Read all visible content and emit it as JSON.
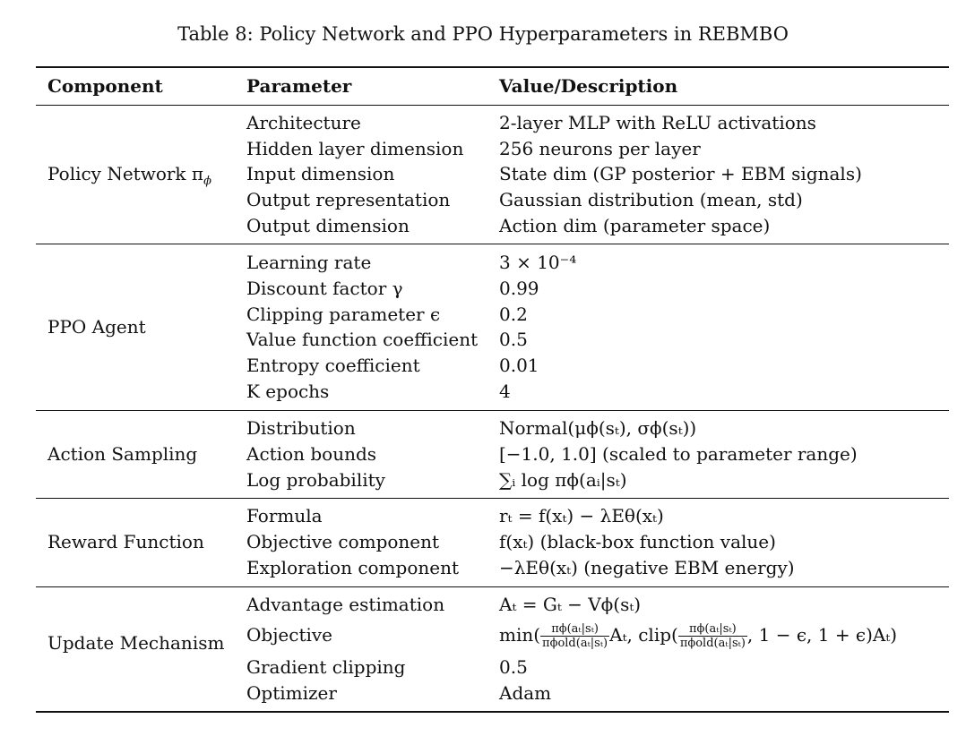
{
  "caption": "Table 8: Policy Network and PPO Hyperparameters in REBMBO",
  "headers": {
    "component": "Component",
    "parameter": "Parameter",
    "value": "Value/Description"
  },
  "groups": [
    {
      "component": "Policy Network π",
      "component_sub": "ϕ",
      "rows": [
        {
          "parameter": "Architecture",
          "value": "2-layer MLP with ReLU activations"
        },
        {
          "parameter": "Hidden layer dimension",
          "value": "256 neurons per layer"
        },
        {
          "parameter": "Input dimension",
          "value": "State dim (GP posterior + EBM signals)"
        },
        {
          "parameter": "Output representation",
          "value": "Gaussian distribution (mean, std)"
        },
        {
          "parameter": "Output dimension",
          "value": "Action dim (parameter space)"
        }
      ]
    },
    {
      "component": "PPO Agent",
      "rows": [
        {
          "parameter": "Learning rate",
          "value": "3 × 10⁻⁴"
        },
        {
          "parameter": "Discount factor γ",
          "value": "0.99"
        },
        {
          "parameter": "Clipping parameter ϵ",
          "value": "0.2"
        },
        {
          "parameter": "Value function coefficient",
          "value": "0.5"
        },
        {
          "parameter": "Entropy coefficient",
          "value": "0.01"
        },
        {
          "parameter": "K epochs",
          "value": "4"
        }
      ]
    },
    {
      "component": "Action Sampling",
      "rows": [
        {
          "parameter": "Distribution",
          "value": "Normal(μϕ(sₜ), σϕ(sₜ))"
        },
        {
          "parameter": "Action bounds",
          "value": "[−1.0, 1.0] (scaled to parameter range)"
        },
        {
          "parameter": "Log probability",
          "value": "∑ᵢ log πϕ(aᵢ|sₜ)"
        }
      ]
    },
    {
      "component": "Reward Function",
      "rows": [
        {
          "parameter": "Formula",
          "value": "rₜ = f(xₜ) − λEθ(xₜ)"
        },
        {
          "parameter": "Objective component",
          "value": "f(xₜ) (black-box function value)"
        },
        {
          "parameter": "Exploration component",
          "value": "−λEθ(xₜ) (negative EBM energy)"
        }
      ]
    },
    {
      "component": "Update Mechanism",
      "rows": [
        {
          "parameter": "Advantage estimation",
          "value": "Aₜ = Gₜ − Vϕ(sₜ)"
        },
        {
          "parameter": "Objective",
          "value": {
            "prefix": "min(",
            "ratio_num": "πϕ(aₜ|sₜ)",
            "ratio_den": "πϕold(aₜ|sₜ)",
            "mid": "Aₜ, clip(",
            "suffix": ", 1 − ϵ, 1 + ϵ)Aₜ)"
          }
        },
        {
          "parameter": "Gradient clipping",
          "value": "0.5"
        },
        {
          "parameter": "Optimizer",
          "value": "Adam"
        }
      ]
    }
  ]
}
